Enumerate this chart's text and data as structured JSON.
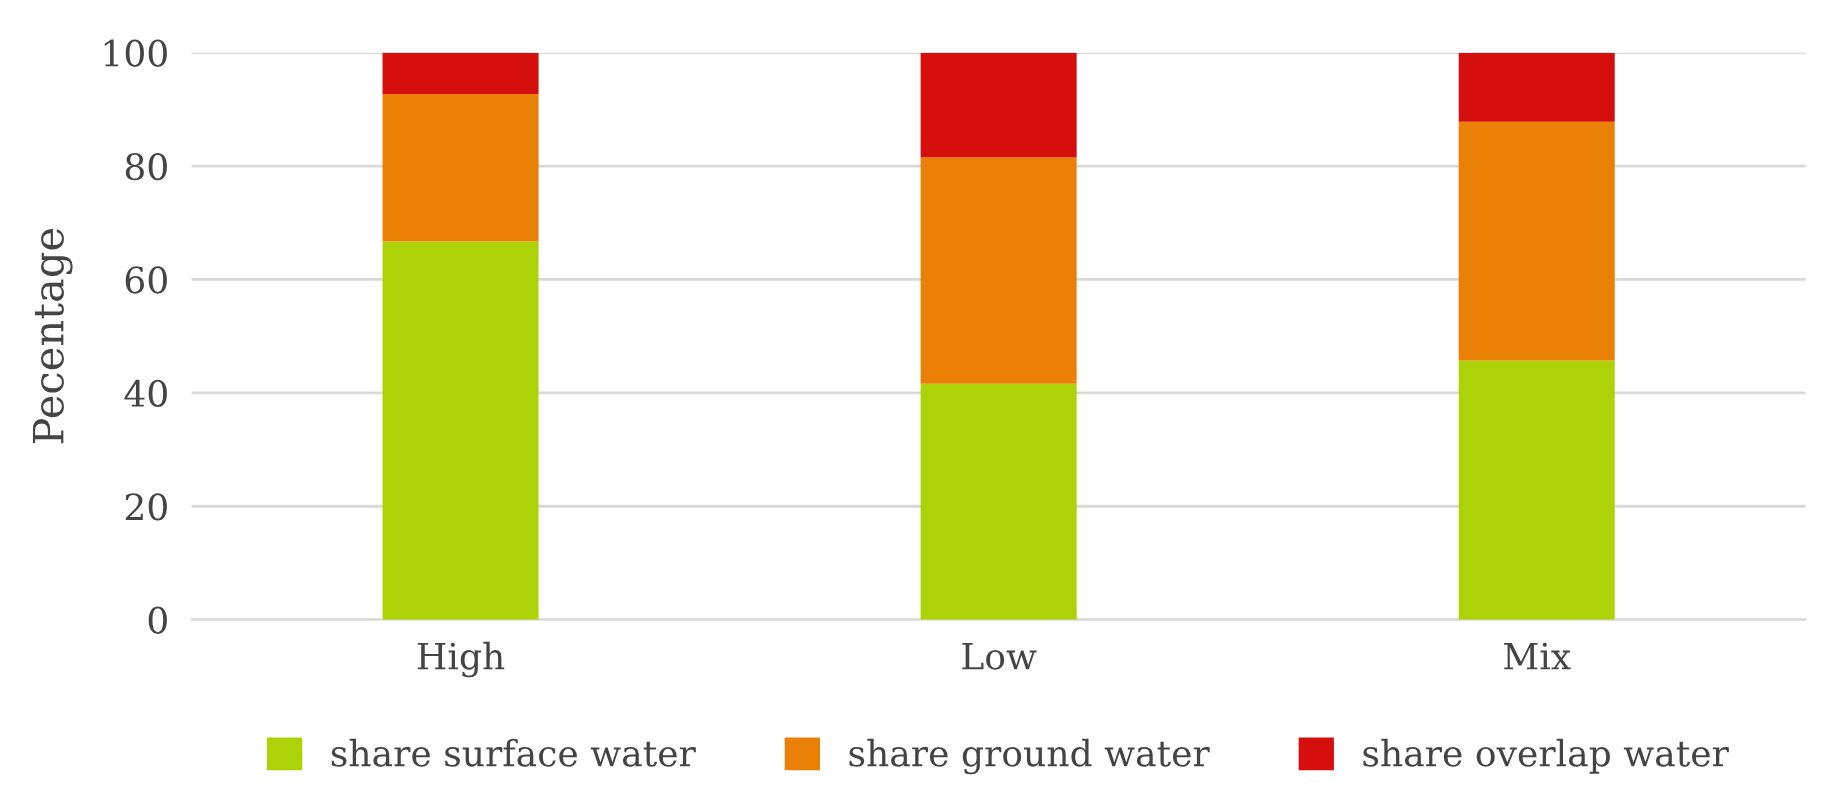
{
  "chart_data": {
    "type": "bar",
    "stacked": true,
    "ylabel": "Pecentage",
    "categories": [
      "High",
      "Low",
      "Mix"
    ],
    "series": [
      {
        "name": "share surface water",
        "color": "#add308",
        "values": [
          66.7,
          41.6,
          45.7
        ]
      },
      {
        "name": "share ground water",
        "color": "#ea8005",
        "values": [
          26.0,
          39.9,
          42.1
        ]
      },
      {
        "name": "share overlap water",
        "color": "#d50f0e",
        "values": [
          7.3,
          18.5,
          12.2
        ]
      }
    ],
    "ylim": [
      0,
      100
    ],
    "yticks": [
      0,
      20,
      40,
      60,
      80,
      100
    ],
    "grid": "y",
    "legend": "bottom"
  }
}
